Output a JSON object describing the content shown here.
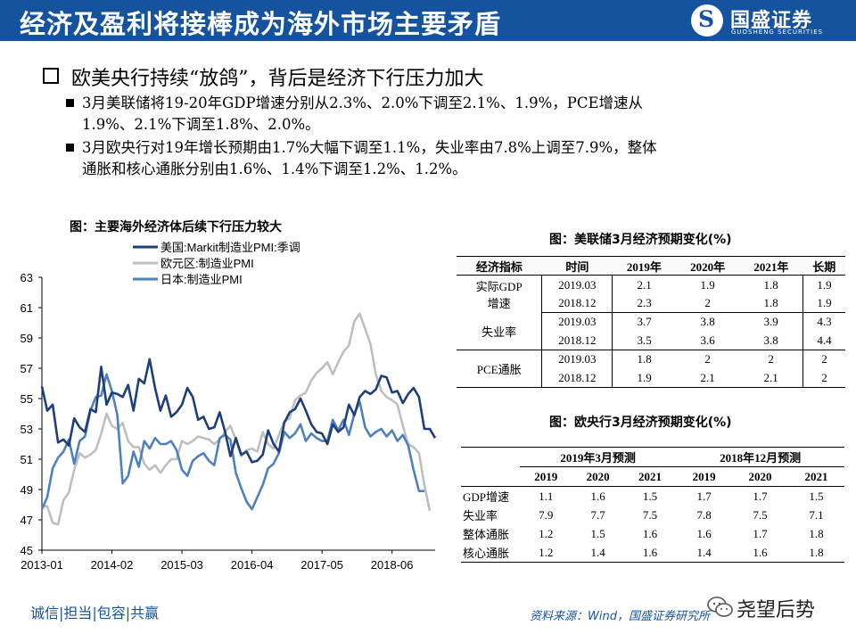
{
  "header": {
    "title": "经济及盈利将接棒成为海外市场主要矛盾",
    "logo_cn": "国盛证券",
    "logo_en": "GUOSHENG SECURITIES",
    "logo_mark": "S",
    "bg_color": "#16539e"
  },
  "main_point": "欧美央行持续“放鸽”，背后是经济下行压力加大",
  "sub_points": [
    {
      "line1": "3月美联储将19-20年GDP增速分别从2.3%、2.0%下调至2.1%、1.9%，PCE增速从",
      "line2": "1.9%、2.1%下调至1.8%、2.0%。"
    },
    {
      "line1": "3月欧央行对19年增长预期由1.7%大幅下调至1.1%，失业率由7.8%上调至7.9%，整体",
      "line2": "通胀和核心通胀分别由1.6%、1.4%下调至1.2%、1.2%。"
    }
  ],
  "chart_title": "图：主要海外经济体后续下行压力较大",
  "chart_data": {
    "type": "line",
    "title": "图：主要海外经济体后续下行压力较大",
    "xlabel": "",
    "ylabel": "",
    "ylim": [
      45,
      63
    ],
    "yticks": [
      45,
      47,
      49,
      51,
      53,
      55,
      57,
      59,
      61,
      63
    ],
    "x_tick_labels": [
      "2013-01",
      "2014-02",
      "2015-03",
      "2016-04",
      "2017-05",
      "2018-06"
    ],
    "x_start": "2013-01",
    "legend_position": "top",
    "grid": false,
    "series": [
      {
        "name": "美国:Markit制造业PMI:季调",
        "color": "#1f3f7a",
        "values": [
          55.8,
          54.2,
          54.6,
          52.1,
          52.3,
          51.9,
          53.7,
          53.1,
          52.8,
          54.3,
          54.1,
          57.1,
          54.6,
          55.4,
          55.3,
          55.1,
          55.9,
          54.2,
          56.3,
          56.0,
          57.6,
          55.7,
          54.2,
          55.2,
          53.8,
          54.1,
          54.6,
          55.7,
          55.1,
          53.6,
          53.8,
          53.0,
          53.1,
          54.1,
          52.8,
          51.2,
          52.4,
          51.3,
          51.5,
          50.8,
          50.9,
          51.3,
          52.9,
          52.0,
          51.5,
          53.4,
          54.1,
          54.3,
          55.0,
          54.2,
          53.3,
          52.8,
          52.7,
          52.0,
          53.3,
          52.8,
          53.1,
          54.6,
          53.9,
          55.1,
          55.5,
          55.3,
          55.6,
          56.5,
          56.4,
          55.4,
          55.5,
          54.7,
          55.3,
          55.7,
          55.1,
          53.0,
          53.0,
          52.4
        ],
        "display_end": [
          53.0,
          52.4
        ]
      },
      {
        "name": "欧元区:制造业PMI",
        "color": "#bfbfbf",
        "values": [
          47.9,
          47.9,
          46.8,
          46.7,
          48.3,
          48.8,
          50.3,
          51.4,
          51.1,
          51.3,
          51.6,
          52.7,
          54.0,
          53.2,
          53.0,
          53.4,
          52.2,
          51.8,
          51.8,
          50.7,
          50.3,
          50.6,
          50.1,
          50.6,
          51.0,
          51.0,
          52.2,
          52.0,
          52.2,
          52.5,
          52.4,
          52.3,
          52.0,
          52.3,
          52.8,
          53.2,
          52.3,
          51.2,
          51.6,
          51.7,
          51.5,
          52.8,
          52.0,
          51.7,
          52.6,
          53.5,
          53.7,
          54.9,
          55.2,
          55.4,
          56.2,
          56.7,
          57.0,
          57.4,
          56.6,
          57.4,
          58.1,
          58.5,
          60.1,
          60.6,
          59.6,
          58.6,
          56.6,
          55.5,
          55.1,
          54.9,
          54.6,
          53.2,
          52.0,
          51.8,
          51.4,
          49.3,
          47.6
        ],
        "display_end": [
          49.3,
          47.6
        ]
      },
      {
        "name": "日本:制造业PMI",
        "color": "#4f81bd",
        "values": [
          47.7,
          48.5,
          50.4,
          51.1,
          51.5,
          52.3,
          50.7,
          52.2,
          52.5,
          54.2,
          55.1,
          55.2,
          56.6,
          55.5,
          53.9,
          49.4,
          49.9,
          51.5,
          50.5,
          52.2,
          51.7,
          52.4,
          52.0,
          52.0,
          52.2,
          51.6,
          50.3,
          49.9,
          50.9,
          51.2,
          51.4,
          50.9,
          50.6,
          52.4,
          52.6,
          52.3,
          50.1,
          49.1,
          48.2,
          47.7,
          48.5,
          49.3,
          50.4,
          50.7,
          51.4,
          52.8,
          52.4,
          52.7,
          53.3,
          52.2,
          52.7,
          52.4,
          52.2,
          52.2,
          53.6,
          52.9,
          53.6,
          52.6,
          54.0,
          54.8,
          53.1,
          52.5,
          52.8,
          53.0,
          52.5,
          52.9,
          52.2,
          52.6,
          51.9,
          50.3,
          48.9,
          48.9
        ],
        "display_end": [
          48.9,
          48.9
        ]
      }
    ]
  },
  "table1": {
    "title": "图：美联储3月经济预期变化(%)",
    "headers": [
      "经济指标",
      "时间",
      "2019年",
      "2020年",
      "2021年",
      "长期"
    ],
    "rows": [
      {
        "indicator_l1": "实际GDP",
        "indicator_l2": "增速",
        "r1": [
          "2019.03",
          "2.1",
          "1.9",
          "1.8",
          "1.9"
        ],
        "r2": [
          "2018.12",
          "2.3",
          "2",
          "1.8",
          "1.9"
        ]
      },
      {
        "indicator": "失业率",
        "r1": [
          "2019.03",
          "3.7",
          "3.8",
          "3.9",
          "4.3"
        ],
        "r2": [
          "2018.12",
          "3.5",
          "3.6",
          "3.8",
          "4.4"
        ]
      },
      {
        "indicator": "PCE通胀",
        "r1": [
          "2019.03",
          "1.8",
          "2",
          "2",
          "2"
        ],
        "r2": [
          "2018.12",
          "1.9",
          "2.1",
          "2.1",
          "2"
        ]
      }
    ]
  },
  "table2": {
    "title": "图：欧央行3月经济预期变化(%)",
    "group1": "2019年3月预测",
    "group2": "2018年12月预测",
    "years": [
      "2019",
      "2020",
      "2021",
      "2019",
      "2020",
      "2021"
    ],
    "rows": [
      {
        "label": "GDP增速",
        "vals": [
          "1.1",
          "1.6",
          "1.5",
          "1.7",
          "1.7",
          "1.5"
        ]
      },
      {
        "label": "失业率",
        "vals": [
          "7.9",
          "7.7",
          "7.5",
          "7.8",
          "7.5",
          "7.1"
        ]
      },
      {
        "label": "整体通胀",
        "vals": [
          "1.2",
          "1.5",
          "1.6",
          "1.6",
          "1.7",
          "1.8"
        ]
      },
      {
        "label": "核心通胀",
        "vals": [
          "1.2",
          "1.4",
          "1.6",
          "1.4",
          "1.6",
          "1.8"
        ]
      }
    ]
  },
  "footer": {
    "motto": "诚信|担当|包容|共赢",
    "source": "资料来源：Wind，国盛证券研究所",
    "watermark": "尧望后势",
    "accent_color": "#16539e"
  }
}
